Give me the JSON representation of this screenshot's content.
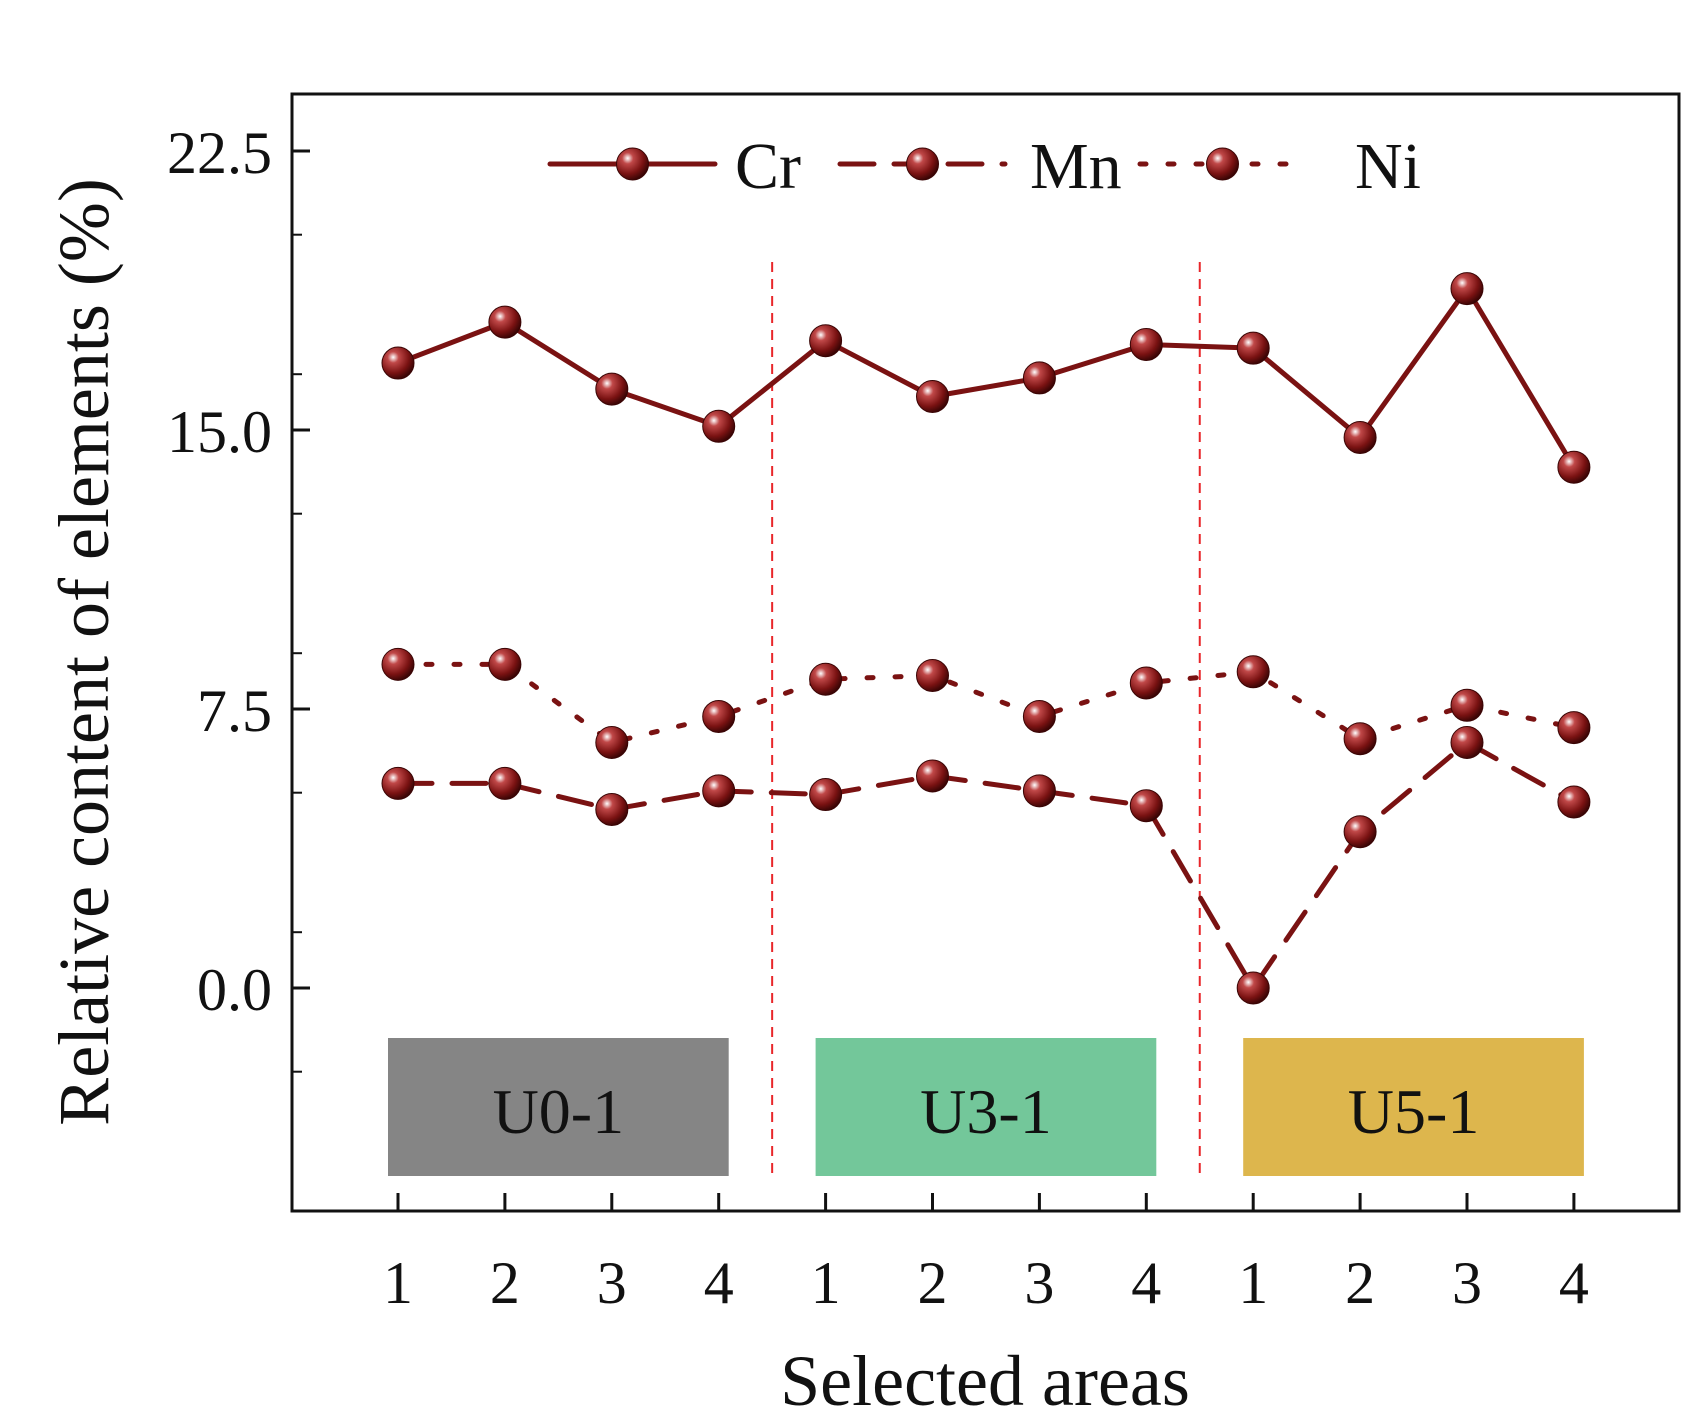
{
  "chart_data": {
    "type": "line",
    "title": "",
    "xlabel": "Selected areas",
    "ylabel": "Relative content of elements (%)",
    "ylim": [
      -6,
      24
    ],
    "yticks": [
      0.0,
      7.5,
      15.0,
      22.5
    ],
    "ytick_labels": [
      "0.0",
      "7.5",
      "15.0",
      "22.5"
    ],
    "categories": [
      "1",
      "2",
      "3",
      "4",
      "1",
      "2",
      "3",
      "4",
      "1",
      "2",
      "3",
      "4"
    ],
    "groups": [
      {
        "label": "U0-1",
        "color": "#858585"
      },
      {
        "label": "U3-1",
        "color": "#73c79a"
      },
      {
        "label": "U5-1",
        "color": "#ddb64d"
      }
    ],
    "series": [
      {
        "name": "Cr",
        "style": "solid",
        "values": [
          16.8,
          17.9,
          16.1,
          15.1,
          17.4,
          15.9,
          16.4,
          17.3,
          17.2,
          14.8,
          18.8,
          14.0
        ]
      },
      {
        "name": "Mn",
        "style": "dashed",
        "values": [
          5.5,
          5.5,
          4.8,
          5.3,
          5.2,
          5.7,
          5.3,
          4.9,
          0.0,
          4.2,
          6.6,
          5.0
        ]
      },
      {
        "name": "Ni",
        "style": "dotted",
        "values": [
          8.7,
          8.7,
          6.6,
          7.3,
          8.3,
          8.4,
          7.3,
          8.2,
          8.5,
          6.7,
          7.6,
          7.0
        ]
      }
    ],
    "line_color": "#7a1212",
    "divider_color": "#e8262a",
    "legend_position": "top-center"
  }
}
